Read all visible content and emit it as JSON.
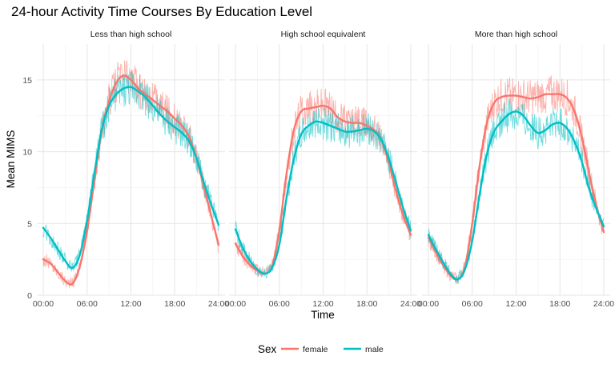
{
  "chart_data": {
    "type": "line",
    "title": "24-hour Activity Time Courses By Education Level",
    "xlabel": "Time",
    "ylabel": "Mean MIMS",
    "ylim": [
      0,
      17.5
    ],
    "yticks": [
      0,
      5,
      10,
      15
    ],
    "xticks": [
      "00:00",
      "06:00",
      "12:00",
      "18:00",
      "24:00"
    ],
    "x_hours": [
      0,
      1,
      2,
      3,
      4,
      5,
      6,
      7,
      8,
      9,
      10,
      11,
      12,
      13,
      14,
      15,
      16,
      17,
      18,
      19,
      20,
      21,
      22,
      23,
      24
    ],
    "legend": {
      "title": "Sex",
      "position": "bottom",
      "entries": [
        "female",
        "male"
      ]
    },
    "grid": true,
    "colors": {
      "female": "#F8766D",
      "male": "#00BFC4"
    },
    "panels": [
      {
        "label": "Less than high school",
        "series": [
          {
            "name": "female",
            "values": [
              2.5,
              2.2,
              1.6,
              1.0,
              0.8,
              2.0,
              4.5,
              8.0,
              11.5,
              13.5,
              14.8,
              15.3,
              15.0,
              14.4,
              14.0,
              13.6,
              13.2,
              12.8,
              12.3,
              11.8,
              11.0,
              9.5,
              7.5,
              5.5,
              3.5
            ]
          },
          {
            "name": "male",
            "values": [
              4.7,
              4.0,
              3.2,
              2.4,
              1.9,
              2.8,
              5.2,
              8.5,
              11.5,
              13.2,
              14.0,
              14.4,
              14.5,
              14.2,
              13.8,
              13.2,
              12.6,
              12.1,
              11.7,
              11.3,
              10.7,
              9.5,
              7.8,
              6.3,
              4.9
            ]
          }
        ]
      },
      {
        "label": "High school equivalent",
        "series": [
          {
            "name": "female",
            "values": [
              3.6,
              2.7,
              2.1,
              1.7,
              1.5,
              2.0,
              4.5,
              8.5,
              11.5,
              12.8,
              13.0,
              13.1,
              13.2,
              13.0,
              12.4,
              12.1,
              12.0,
              12.0,
              11.8,
              11.5,
              10.8,
              9.2,
              7.2,
              5.5,
              4.2
            ]
          },
          {
            "name": "male",
            "values": [
              4.6,
              3.3,
              2.4,
              1.8,
              1.5,
              1.9,
              3.5,
              6.8,
              9.5,
              11.2,
              11.8,
              12.1,
              12.0,
              11.8,
              11.6,
              11.4,
              11.4,
              11.5,
              11.6,
              11.4,
              10.8,
              9.5,
              7.8,
              6.0,
              4.5
            ]
          }
        ]
      },
      {
        "label": "More than high school",
        "series": [
          {
            "name": "female",
            "values": [
              4.0,
              3.0,
              2.1,
              1.4,
              1.1,
              2.0,
              5.0,
              9.0,
              12.0,
              13.4,
              13.8,
              13.9,
              13.9,
              13.8,
              13.7,
              13.8,
              14.0,
              14.0,
              14.0,
              13.7,
              12.8,
              11.0,
              8.5,
              6.2,
              4.4
            ]
          },
          {
            "name": "male",
            "values": [
              4.2,
              3.2,
              2.3,
              1.5,
              1.1,
              1.8,
              3.8,
              7.0,
              9.8,
              11.4,
              12.1,
              12.6,
              12.8,
              12.5,
              11.8,
              11.3,
              11.5,
              11.9,
              12.0,
              11.6,
              10.7,
              9.3,
              7.4,
              6.0,
              4.8
            ]
          }
        ]
      }
    ]
  }
}
